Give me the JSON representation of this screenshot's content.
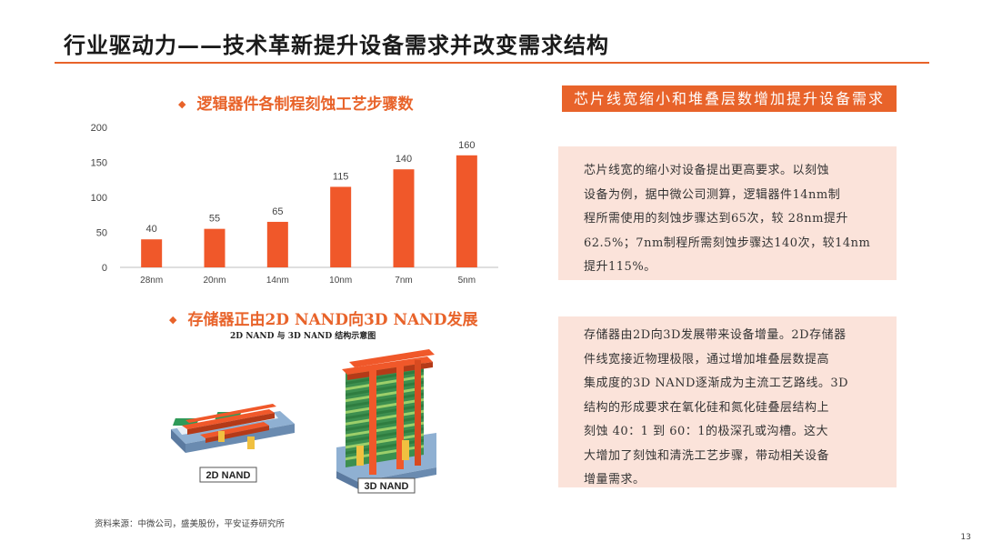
{
  "title": "行业驱动力——技术革新提升设备需求并改变需求结构",
  "chart_section": {
    "bullet": "◆",
    "heading": "逻辑器件各制程刻蚀工艺步骤数"
  },
  "chart_data": {
    "type": "bar",
    "categories": [
      "28nm",
      "20nm",
      "14nm",
      "10nm",
      "7nm",
      "5nm"
    ],
    "values": [
      40,
      55,
      65,
      115,
      140,
      160
    ],
    "ylim": [
      0,
      200
    ],
    "yticks": [
      0,
      50,
      100,
      150,
      200
    ],
    "bar_color": "#f0582a",
    "axis_color": "#bfbfbf",
    "grid": false,
    "data_labels": true,
    "title": "",
    "xlabel": "",
    "ylabel": ""
  },
  "nand_section": {
    "bullet": "◆",
    "heading": "存储器正由2D NAND向3D NAND发展",
    "caption": "2D NAND 与 3D NAND 结构示意图",
    "label_2d": "2D NAND",
    "label_3d": "3D NAND"
  },
  "right": {
    "banner": "芯片线宽缩小和堆叠层数增加提升设备需求",
    "box1_lines": [
      "芯片线宽的缩小对设备提出更高要求。以刻蚀",
      "设备为例，据中微公司测算，逻辑器件14nm制",
      "程所需使用的刻蚀步骤达到65次，较 28nm提升",
      "62.5%；7nm制程所需刻蚀步骤达140次，较14nm",
      "提升115%。"
    ],
    "box2_lines": [
      "存储器由2D向3D发展带来设备增量。2D存储器",
      "件线宽接近物理极限，通过增加堆叠层数提高",
      "集成度的3D NAND逐渐成为主流工艺路线。3D",
      "结构的形成要求在氧化硅和氮化硅叠层结构上",
      "刻蚀 40：1 到 60：1的极深孔或沟槽。这大",
      "大增加了刻蚀和清洗工艺步骤，带动相关设备",
      "增量需求。"
    ]
  },
  "source": "资料来源：中微公司，盛美股份，平安证券研究所",
  "page_number": "13",
  "colors": {
    "accent": "#e8632a",
    "box_bg": "#fbe3da"
  }
}
